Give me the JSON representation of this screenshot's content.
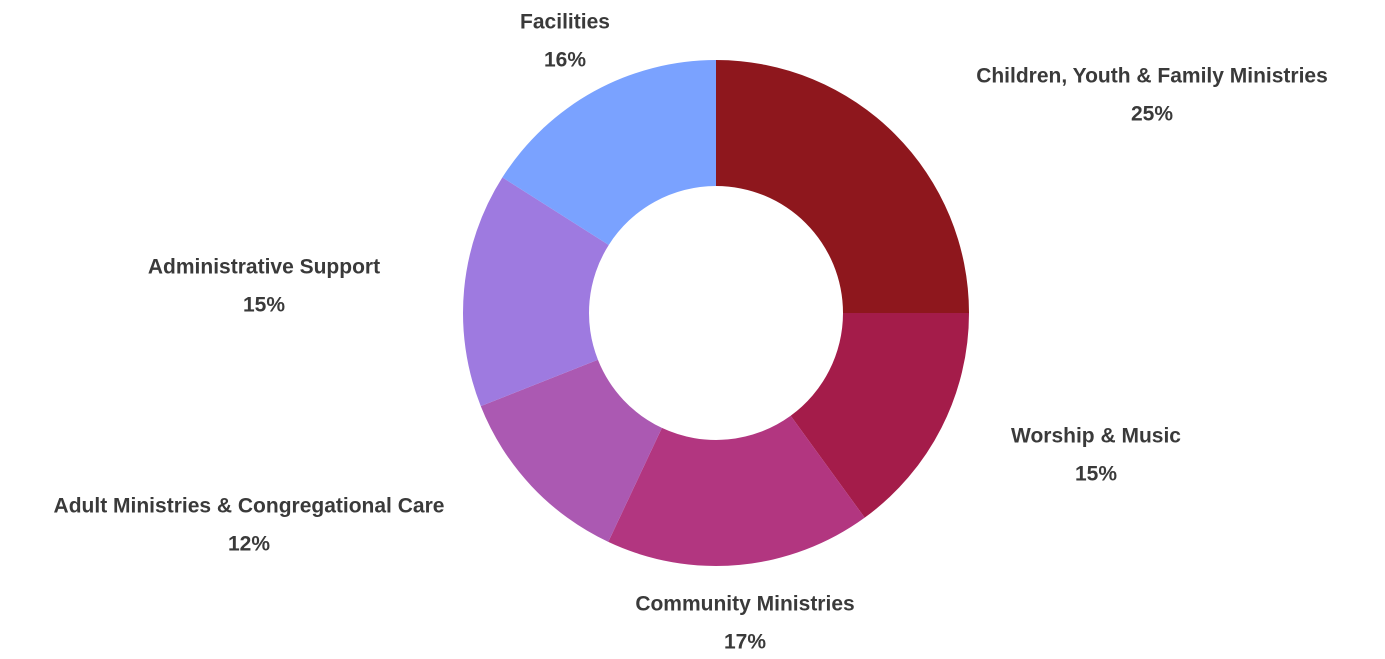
{
  "chart_data": {
    "type": "pie",
    "style": "donut",
    "title": "",
    "start_angle_deg": 0,
    "direction": "clockwise",
    "slices": [
      {
        "name": "Children, Youth & Family Ministries",
        "value": 25,
        "label": "25%",
        "color": "#8e171d"
      },
      {
        "name": "Worship & Music",
        "value": 15,
        "label": "15%",
        "color": "#a41c4a"
      },
      {
        "name": "Community Ministries",
        "value": 17,
        "label": "17%",
        "color": "#b23680"
      },
      {
        "name": "Adult Ministries & Congregational Care",
        "value": 12,
        "label": "12%",
        "color": "#ab59b2"
      },
      {
        "name": "Administrative Support",
        "value": 15,
        "label": "15%",
        "color": "#9e7ae0"
      },
      {
        "name": "Facilities",
        "value": 16,
        "label": "16%",
        "color": "#7aa2ff"
      }
    ],
    "legend": "none",
    "label_position": "outside"
  }
}
